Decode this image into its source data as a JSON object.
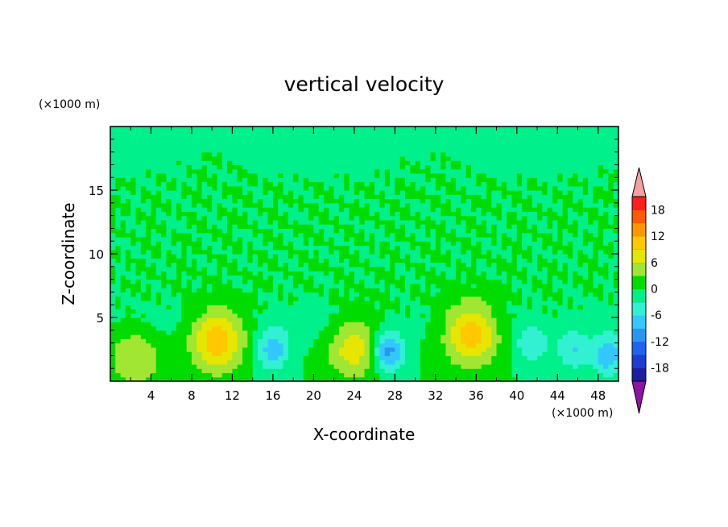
{
  "chart_data": {
    "type": "heatmap",
    "title": "vertical velocity",
    "xlabel": "X-coordinate",
    "ylabel": "Z-coordinate",
    "x_unit": "(×1000 m)",
    "y_unit": "(×1000 m)",
    "xlim": [
      0,
      50
    ],
    "ylim": [
      0,
      20
    ],
    "x_ticks": [
      "4",
      "8",
      "12",
      "16",
      "20",
      "24",
      "28",
      "32",
      "36",
      "40",
      "44",
      "48"
    ],
    "y_ticks": [
      "5",
      "10",
      "15"
    ],
    "colorbar": {
      "ticks": [
        "18",
        "12",
        "6",
        "0",
        "-6",
        "-12",
        "-18"
      ],
      "levels": [
        -21,
        -18,
        -15,
        -12,
        -9,
        -6,
        -3,
        0,
        3,
        6,
        9,
        12,
        15,
        18,
        21
      ],
      "colors": [
        "#5a1f96",
        "#1e1ea0",
        "#1e3cd2",
        "#1e64f0",
        "#2896f0",
        "#32c8ff",
        "#32f0d2",
        "#00f08c",
        "#00dc00",
        "#a0e632",
        "#e6e600",
        "#ffc800",
        "#ff9600",
        "#ff5a00",
        "#ff1e1e",
        "#e61e1e",
        "#f5a0a0"
      ],
      "under_color": "#8c14a0",
      "over_color": "#f5a0a0"
    },
    "features": [
      {
        "x": 2.5,
        "z": 2.0,
        "peak_w": 6
      },
      {
        "x": 10.5,
        "z": 3.2,
        "peak_w": 11
      },
      {
        "x": 16.0,
        "z": 2.5,
        "peak_w": -8
      },
      {
        "x": 24.0,
        "z": 2.6,
        "peak_w": 8
      },
      {
        "x": 27.3,
        "z": 2.4,
        "peak_w": -11
      },
      {
        "x": 35.5,
        "z": 3.8,
        "peak_w": 12
      },
      {
        "x": 41.5,
        "z": 3.0,
        "peak_w": -6
      },
      {
        "x": 45.5,
        "z": 2.5,
        "peak_w": -6
      },
      {
        "x": 49.0,
        "z": 2.0,
        "peak_w": -8
      }
    ],
    "grid": false,
    "legend": "right"
  }
}
